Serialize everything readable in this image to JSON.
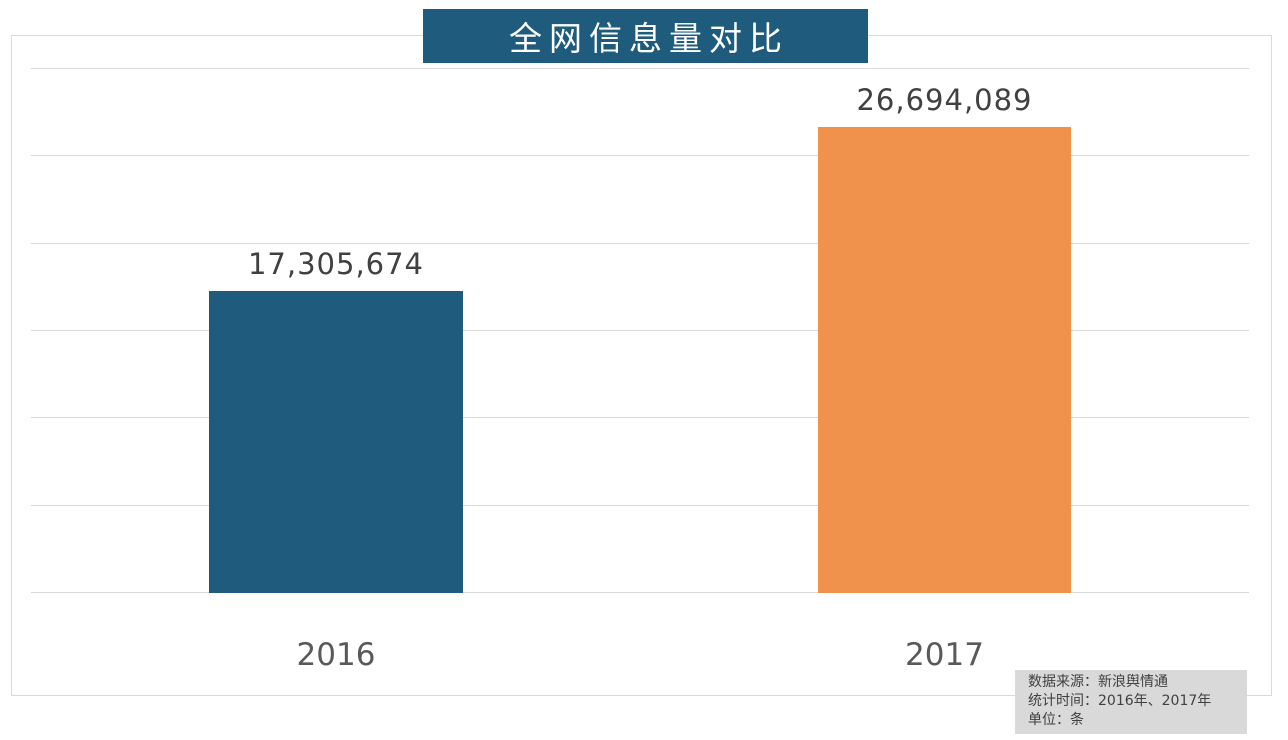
{
  "title": {
    "text": "全网信息量对比",
    "bg_color": "#1e5b7c",
    "text_color": "#ffffff"
  },
  "chart_data": {
    "type": "bar",
    "title": "全网信息量对比",
    "categories": [
      "2016",
      "2017"
    ],
    "values": [
      17305674,
      26694089
    ],
    "value_labels": [
      "17,305,674",
      "26,694,089"
    ],
    "bar_colors": [
      "#1e5b7c",
      "#f0924c"
    ],
    "xlabel": "",
    "ylabel": "",
    "ylim": [
      0,
      30000000
    ],
    "gridline_values": [
      0,
      5000000,
      10000000,
      15000000,
      20000000,
      25000000,
      30000000
    ],
    "grid": true,
    "gridline_color": "#d9d9d9",
    "legend": false,
    "axis_tick_labels_visible": false
  },
  "source_note": {
    "line1": "数据来源：新浪舆情通",
    "line2": "统计时间：2016年、2017年",
    "line3": "单位：条",
    "bg_color": "#d9d9d9",
    "text_color": "#404040"
  },
  "colors": {
    "background": "#ffffff",
    "chart_border": "#d9d9d9",
    "value_label": "#404040",
    "category_label": "#595959"
  }
}
